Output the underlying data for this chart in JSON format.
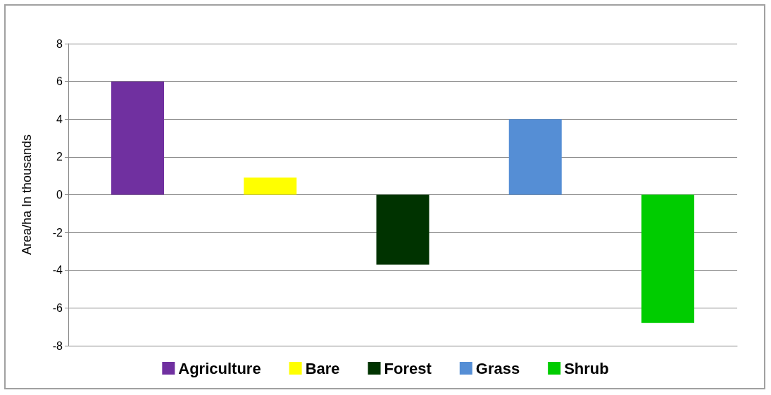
{
  "chart_data": {
    "type": "bar",
    "ylabel": "Area/ha In thousands",
    "categories": [
      null
    ],
    "series": [
      {
        "name": "Agriculture",
        "color": "#7030a0",
        "values": [
          6.0
        ]
      },
      {
        "name": "Bare",
        "color": "#ffff00",
        "values": [
          0.9
        ]
      },
      {
        "name": "Forest",
        "color": "#003300",
        "values": [
          -3.7
        ]
      },
      {
        "name": "Grass",
        "color": "#558ed5",
        "values": [
          4.0
        ]
      },
      {
        "name": "Shrub",
        "color": "#00cc00",
        "values": [
          -6.8
        ]
      }
    ],
    "ylim": [
      -8,
      8
    ],
    "yticks": [
      -8,
      -6,
      -4,
      -2,
      0,
      2,
      4,
      6,
      8
    ],
    "grid": "y",
    "legend": "bottom"
  }
}
